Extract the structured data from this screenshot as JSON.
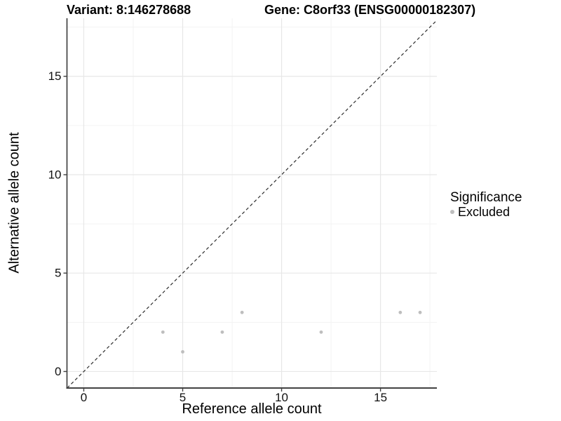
{
  "chart_data": {
    "type": "scatter",
    "titles": {
      "left": "Variant: 8:146278688",
      "right": "Gene: C8orf33 (ENSG00000182307)"
    },
    "xlabel": "Reference allele count",
    "ylabel": "Alternative allele count",
    "xlim": [
      -0.85,
      17.85
    ],
    "ylim": [
      -0.84,
      17.95
    ],
    "x_ticks_major": [
      0,
      5,
      10,
      15
    ],
    "x_ticks_minor": [
      2.5,
      7.5,
      12.5,
      17.5
    ],
    "y_ticks_major": [
      0,
      5,
      10,
      15
    ],
    "y_ticks_minor": [
      2.5,
      7.5,
      12.5,
      17.5
    ],
    "grid": true,
    "series": [
      {
        "name": "Excluded",
        "color": "#bebebe",
        "points": [
          [
            4,
            2
          ],
          [
            5,
            1
          ],
          [
            7,
            2
          ],
          [
            8,
            3
          ],
          [
            12,
            2
          ],
          [
            16,
            3
          ],
          [
            17,
            3
          ]
        ]
      }
    ],
    "identity_line": {
      "style": "dashed",
      "color": "#2e2e2e"
    },
    "legend": {
      "position": "right",
      "title": "Significance",
      "entries": [
        {
          "label": "Excluded",
          "color": "#bebebe"
        }
      ]
    },
    "colors": {
      "grid_major": "#e7e7e7",
      "grid_minor": "#f3f3f3",
      "axis_line": "#424242",
      "tick_text": "#111111"
    }
  }
}
